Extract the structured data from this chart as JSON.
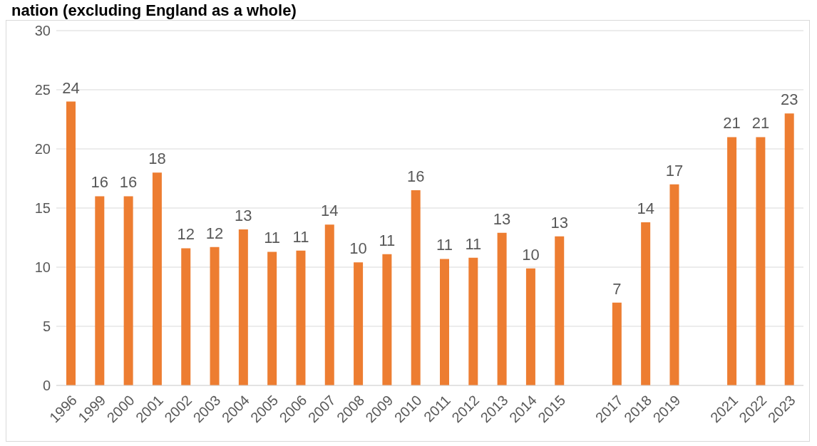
{
  "chart_data": {
    "type": "bar",
    "title": "nation (excluding England as a whole)",
    "categories": [
      "1996",
      "1999",
      "2000",
      "2001",
      "2002",
      "2003",
      "2004",
      "2005",
      "2006",
      "2007",
      "2008",
      "2009",
      "2010",
      "2011",
      "2012",
      "2013",
      "2014",
      "2015",
      null,
      "2017",
      "2018",
      "2019",
      null,
      "2021",
      "2022",
      "2023"
    ],
    "values": [
      24,
      16,
      16,
      18,
      11.6,
      11.7,
      13.2,
      11.3,
      11.4,
      13.6,
      10.4,
      11.1,
      16.5,
      10.7,
      10.8,
      12.9,
      9.9,
      12.6,
      null,
      7.0,
      13.8,
      17.0,
      null,
      21,
      21,
      23
    ],
    "value_labels": [
      "24",
      "16",
      "16",
      "18",
      "12",
      "12",
      "13",
      "11",
      "11",
      "14",
      "10",
      "11",
      "16",
      "11",
      "11",
      "13",
      "10",
      "13",
      null,
      "7",
      "14",
      "17",
      null,
      "21",
      "21",
      "23"
    ],
    "color": "#ed7d31",
    "ylim": [
      0,
      30
    ],
    "yticks": [
      0,
      5,
      10,
      15,
      20,
      25,
      30
    ],
    "grid": "y",
    "legend": false
  }
}
